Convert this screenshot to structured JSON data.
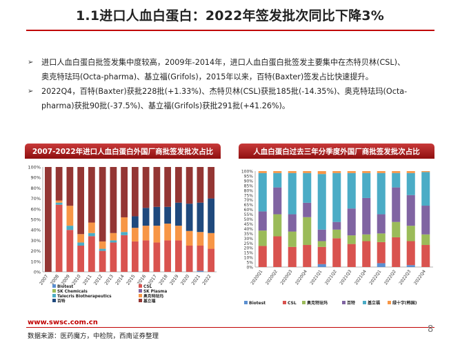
{
  "slide": {
    "title": "1.1进口人血白蛋白：2022年签发批次同比下降3%",
    "bullets": [
      {
        "line1": "进口人血白蛋白批签发集中度较高，2009年-2014年，进口人血白蛋白批签发主要集中在杰特贝林(CSL)、",
        "line2": "奥克特珐玛(Octa-pharma)、基立福(Grifols)，2015年以来，百特(Baxter)签发占比快速提升。"
      },
      {
        "line1": "2022Q4，百特(Baxter)获批228批(+1.33%)、杰特贝林(CSL)获批185批(-14.35%)、奥克特珐玛(Octa-",
        "line2": "pharma)获批90批(-37.5%)、基立福(Grifols)获批291批(+41.26%)。"
      }
    ],
    "bullet_mark": "➢",
    "footer_url": "www.swsc.com.cn",
    "footer_source": "数据来源：医药魔方，中检院，西南证券整理",
    "page_number": "8"
  },
  "chart_data": [
    {
      "type": "bar",
      "stacked": true,
      "title": "2007-2022年进口人血白蛋白外国厂商批签发批次占比",
      "categories": [
        "2007",
        "2008",
        "2009",
        "2010",
        "2011",
        "2012",
        "2013",
        "2014",
        "2015",
        "2016",
        "2017",
        "2018",
        "2019",
        "2020",
        "2021",
        "2022"
      ],
      "yticks": [
        "0%",
        "10%",
        "20%",
        "30%",
        "40%",
        "50%",
        "60%",
        "70%",
        "80%",
        "90%",
        "100%"
      ],
      "ylim": [
        0,
        100
      ],
      "legend_placement": "bottom",
      "series": [
        {
          "name": "Biotest",
          "color": "#5b8fd0",
          "values": [
            0,
            0,
            0,
            0,
            0,
            0,
            0,
            0,
            0,
            0,
            0,
            0,
            0,
            0,
            1,
            0
          ]
        },
        {
          "name": "CSL",
          "color": "#d9534f",
          "values": [
            0,
            64,
            40,
            25,
            34,
            20,
            28,
            35,
            29,
            30,
            28,
            30,
            30,
            25,
            24,
            22
          ]
        },
        {
          "name": "SK Chemicals",
          "color": "#9bbb59",
          "values": [
            0,
            0,
            0,
            0,
            0,
            0,
            0,
            0,
            0,
            0,
            0,
            0,
            0,
            0,
            0,
            0
          ]
        },
        {
          "name": "SK Plasma",
          "color": "#8064a2",
          "values": [
            0,
            0,
            0,
            0,
            0,
            0,
            0,
            0,
            0,
            0,
            0,
            0,
            0,
            0,
            0,
            0
          ]
        },
        {
          "name": "Talecris Biotherapeutics",
          "color": "#4bacc6",
          "values": [
            0,
            2,
            4,
            3,
            3,
            2,
            2,
            3,
            0,
            0,
            0,
            0,
            0,
            0,
            0,
            0
          ]
        },
        {
          "name": "奥克特珐玛",
          "color": "#f79646",
          "values": [
            0,
            2,
            19,
            8,
            10,
            7,
            7,
            14,
            13,
            14,
            16,
            16,
            14,
            14,
            13,
            15
          ]
        },
        {
          "name": "百特",
          "color": "#1f497d",
          "values": [
            0,
            0,
            0,
            0,
            0,
            0,
            0,
            0,
            11,
            17,
            18,
            16,
            22,
            26,
            28,
            33
          ]
        },
        {
          "name": "基立福",
          "color": "#943634",
          "values": [
            100,
            32,
            37,
            64,
            53,
            71,
            63,
            48,
            47,
            39,
            38,
            38,
            34,
            35,
            34,
            30
          ]
        }
      ]
    },
    {
      "type": "bar",
      "stacked": true,
      "title": "人血白蛋白过去三年分季度外国厂商批签发批次占比",
      "categories": [
        "2020Q1",
        "2020Q2",
        "2020Q3",
        "2020Q4",
        "2021Q1",
        "2021Q2",
        "2021Q3",
        "2021Q4",
        "2022Q1",
        "2022Q2",
        "2022Q3",
        "2022Q4"
      ],
      "yticks": [
        "0%",
        "5%",
        "10%",
        "15%",
        "20%",
        "25%",
        "30%",
        "35%",
        "40%",
        "45%",
        "50%",
        "55%",
        "60%",
        "65%",
        "70%",
        "75%",
        "80%",
        "85%",
        "90%",
        "95%",
        "100%"
      ],
      "ylim": [
        0,
        100
      ],
      "legend_placement": "bottom",
      "series": [
        {
          "name": "Biotest",
          "color": "#5b8fd0",
          "values": [
            0,
            0,
            0,
            0,
            3,
            0,
            0,
            0,
            4,
            0,
            2,
            0
          ]
        },
        {
          "name": "CSL",
          "color": "#d9534f",
          "values": [
            22,
            32,
            21,
            23,
            18,
            30,
            24,
            27,
            22,
            31,
            25,
            23
          ]
        },
        {
          "name": "奥克特珐玛",
          "color": "#9bbb59",
          "values": [
            16,
            23,
            16,
            29,
            6,
            9,
            9,
            7,
            9,
            16,
            16,
            11
          ]
        },
        {
          "name": "百特",
          "color": "#8064a2",
          "values": [
            20,
            28,
            18,
            15,
            12,
            8,
            28,
            38,
            20,
            36,
            32,
            30
          ]
        },
        {
          "name": "基立福",
          "color": "#4bacc6",
          "values": [
            40,
            15,
            43,
            31,
            58,
            51,
            37,
            26,
            43,
            15,
            23,
            35
          ]
        },
        {
          "name": "绿十字(韩国)",
          "color": "#f79646",
          "values": [
            2,
            2,
            2,
            2,
            3,
            2,
            2,
            2,
            2,
            2,
            2,
            1
          ]
        }
      ]
    }
  ]
}
